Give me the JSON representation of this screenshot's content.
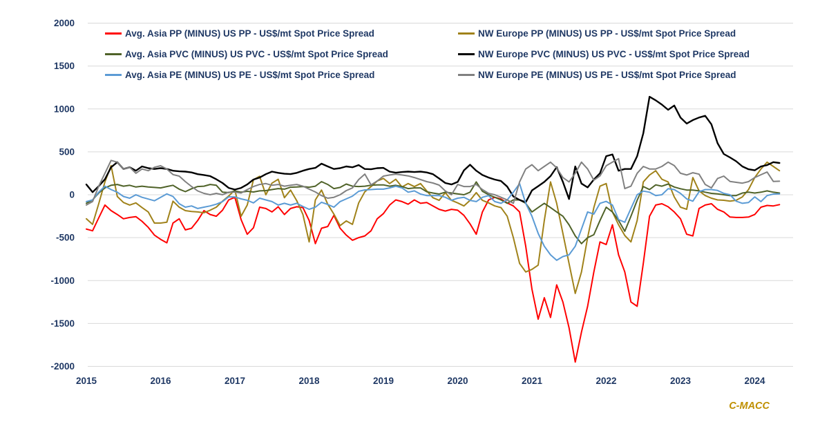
{
  "branding": {
    "watermark": "C-MACC"
  },
  "chart_data": {
    "type": "line",
    "title": "",
    "xlabel": "",
    "ylabel": "",
    "unit": "US$/mt",
    "grid": "horizontal",
    "legend_position": "top",
    "xlim": [
      2015,
      2024.5
    ],
    "ylim": [
      -2000,
      2000
    ],
    "x_ticks": [
      2015,
      2016,
      2017,
      2018,
      2019,
      2020,
      2021,
      2022,
      2023,
      2024
    ],
    "y_ticks": [
      2000,
      1500,
      1000,
      500,
      0,
      -500,
      -1000,
      -1500,
      -2000
    ],
    "x_start": 2015.0,
    "x_step_years": 0.0833333,
    "colors": {
      "axis_text": "#1F3864",
      "gridline": "#D9D9D9",
      "watermark": "#BF8F00",
      "background": "#FFFFFF"
    },
    "series": [
      {
        "name": "Avg. Asia PP (MINUS) US PP - US$/mt Spot Price Spread",
        "color": "#FF0000",
        "values": [
          -400,
          -420,
          -270,
          -120,
          -185,
          -230,
          -280,
          -265,
          -255,
          -310,
          -380,
          -470,
          -520,
          -560,
          -330,
          -280,
          -410,
          -390,
          -300,
          -185,
          -230,
          -250,
          -180,
          -60,
          -30,
          -290,
          -460,
          -385,
          -145,
          -160,
          -200,
          -140,
          -230,
          -160,
          -140,
          -150,
          -300,
          -570,
          -390,
          -370,
          -240,
          -390,
          -470,
          -530,
          -500,
          -480,
          -420,
          -280,
          -220,
          -120,
          -60,
          -80,
          -110,
          -60,
          -100,
          -90,
          -130,
          -170,
          -190,
          -170,
          -180,
          -240,
          -340,
          -460,
          -200,
          -60,
          -30,
          -50,
          -95,
          -130,
          -200,
          -600,
          -1100,
          -1450,
          -1200,
          -1430,
          -1050,
          -1250,
          -1550,
          -1950,
          -1600,
          -1300,
          -900,
          -550,
          -580,
          -350,
          -700,
          -900,
          -1250,
          -1300,
          -800,
          -250,
          -120,
          -105,
          -140,
          -200,
          -280,
          -460,
          -480,
          -160,
          -120,
          -105,
          -170,
          -200,
          -260,
          -265,
          -265,
          -260,
          -230,
          -145,
          -125,
          -130,
          -115
        ]
      },
      {
        "name": "NW Europe PP (MINUS) US PP - US$/mt Spot Price Spread",
        "color": "#A0821A",
        "values": [
          -280,
          -345,
          -105,
          150,
          340,
          -20,
          -90,
          -120,
          -95,
          -150,
          -200,
          -330,
          -330,
          -320,
          -75,
          -145,
          -185,
          -195,
          -200,
          -210,
          -180,
          -145,
          -75,
          -15,
          55,
          -250,
          -120,
          175,
          215,
          0,
          135,
          180,
          -35,
          55,
          -70,
          -230,
          -550,
          -60,
          55,
          -110,
          -225,
          -360,
          -305,
          -345,
          -95,
          35,
          95,
          160,
          190,
          130,
          180,
          90,
          130,
          95,
          130,
          45,
          -35,
          -65,
          25,
          -65,
          -95,
          -130,
          -65,
          25,
          -65,
          -95,
          -130,
          -150,
          -250,
          -500,
          -800,
          -900,
          -870,
          -820,
          -300,
          150,
          -100,
          -450,
          -800,
          -1150,
          -900,
          -500,
          -150,
          100,
          130,
          -200,
          -350,
          -475,
          -550,
          -300,
          150,
          230,
          280,
          180,
          150,
          -25,
          -145,
          -170,
          200,
          45,
          -10,
          -40,
          -60,
          -64,
          -75,
          -64,
          -25,
          60,
          200,
          300,
          380,
          330,
          280
        ]
      },
      {
        "name": "Avg. Asia PVC (MINUS) US PVC - US$/mt Spot Price Spread",
        "color": "#4F6228",
        "values": [
          -100,
          -60,
          20,
          80,
          110,
          120,
          100,
          110,
          90,
          100,
          90,
          85,
          80,
          96,
          110,
          65,
          36,
          70,
          96,
          100,
          120,
          110,
          30,
          25,
          44,
          30,
          40,
          32,
          45,
          48,
          60,
          72,
          65,
          88,
          90,
          96,
          88,
          100,
          153,
          120,
          72,
          85,
          125,
          100,
          96,
          100,
          110,
          115,
          115,
          100,
          110,
          95,
          72,
          80,
          80,
          35,
          20,
          8,
          30,
          20,
          10,
          0,
          30,
          150,
          40,
          0,
          -30,
          -60,
          -100,
          -60,
          -60,
          -100,
          -200,
          -150,
          -100,
          -150,
          -200,
          -250,
          -350,
          -480,
          -570,
          -500,
          -466,
          -300,
          -145,
          -200,
          -300,
          -426,
          -250,
          -64,
          96,
          60,
          115,
          100,
          125,
          90,
          70,
          55,
          55,
          45,
          30,
          16,
          10,
          0,
          -10,
          -10,
          20,
          30,
          20,
          30,
          45,
          30,
          20
        ]
      },
      {
        "name": "NW Europe PVC (MINUS) US PVC - US$/mt Spot Price Spread",
        "color": "#000000",
        "values": [
          120,
          30,
          100,
          180,
          320,
          380,
          300,
          320,
          280,
          330,
          310,
          300,
          310,
          300,
          280,
          273,
          270,
          260,
          240,
          230,
          217,
          180,
          137,
          80,
          60,
          80,
          120,
          177,
          200,
          240,
          270,
          255,
          245,
          241,
          255,
          280,
          300,
          313,
          362,
          330,
          300,
          310,
          330,
          320,
          346,
          300,
          297,
          310,
          313,
          270,
          257,
          265,
          270,
          265,
          270,
          260,
          240,
          190,
          137,
          120,
          150,
          283,
          350,
          280,
          230,
          200,
          177,
          160,
          95,
          -20,
          -60,
          -88,
          50,
          100,
          150,
          217,
          322,
          150,
          -50,
          330,
          130,
          85,
          177,
          250,
          450,
          470,
          280,
          300,
          300,
          450,
          716,
          1142,
          1100,
          1050,
          990,
          1040,
          900,
          830,
          870,
          900,
          920,
          820,
          600,
          475,
          435,
          390,
          330,
          297,
          285,
          330,
          345,
          380,
          370
        ]
      },
      {
        "name": "Avg. Asia PE (MINUS) US PE - US$/mt Spot Price Spread",
        "color": "#5B9BD5",
        "values": [
          -80,
          -60,
          30,
          100,
          60,
          30,
          -20,
          -40,
          0,
          -30,
          -50,
          -70,
          -30,
          10,
          -20,
          -105,
          -145,
          -130,
          -160,
          -145,
          -130,
          -110,
          -80,
          -25,
          -25,
          -48,
          -64,
          -95,
          -40,
          -60,
          -80,
          -120,
          -100,
          -120,
          -100,
          -137,
          -170,
          -145,
          -88,
          -113,
          -145,
          -80,
          -48,
          -16,
          40,
          56,
          60,
          65,
          65,
          80,
          100,
          80,
          30,
          45,
          8,
          -10,
          -10,
          -10,
          -30,
          -65,
          -40,
          -30,
          -65,
          -80,
          -30,
          -10,
          -80,
          -100,
          -60,
          30,
          130,
          -100,
          -250,
          -450,
          -600,
          -700,
          -764,
          -720,
          -700,
          -600,
          -400,
          -200,
          -225,
          -100,
          -77,
          -120,
          -290,
          -320,
          -160,
          0,
          43,
          30,
          -10,
          0,
          70,
          60,
          16,
          -48,
          -75,
          35,
          60,
          60,
          50,
          16,
          0,
          -75,
          -100,
          -90,
          -25,
          -80,
          -10,
          8,
          10
        ]
      },
      {
        "name": "NW Europe PE (MINUS) US PE - US$/mt Spot Price Spread",
        "color": "#808080",
        "values": [
          -120,
          -80,
          100,
          250,
          400,
          380,
          300,
          320,
          250,
          300,
          280,
          320,
          338,
          300,
          235,
          217,
          153,
          96,
          44,
          16,
          0,
          16,
          0,
          30,
          30,
          20,
          60,
          96,
          120,
          130,
          110,
          120,
          100,
          110,
          120,
          100,
          65,
          32,
          -10,
          -40,
          -30,
          0,
          48,
          80,
          177,
          241,
          115,
          160,
          217,
          230,
          240,
          230,
          220,
          200,
          177,
          153,
          137,
          113,
          44,
          0,
          120,
          96,
          96,
          120,
          60,
          16,
          0,
          -30,
          -60,
          -100,
          150,
          300,
          350,
          280,
          330,
          380,
          314,
          200,
          150,
          250,
          380,
          300,
          170,
          220,
          338,
          380,
          420,
          72,
          100,
          250,
          330,
          300,
          300,
          330,
          380,
          340,
          250,
          230,
          257,
          240,
          120,
          80,
          190,
          217,
          155,
          145,
          135,
          153,
          200,
          233,
          265,
          155,
          158
        ]
      }
    ]
  }
}
